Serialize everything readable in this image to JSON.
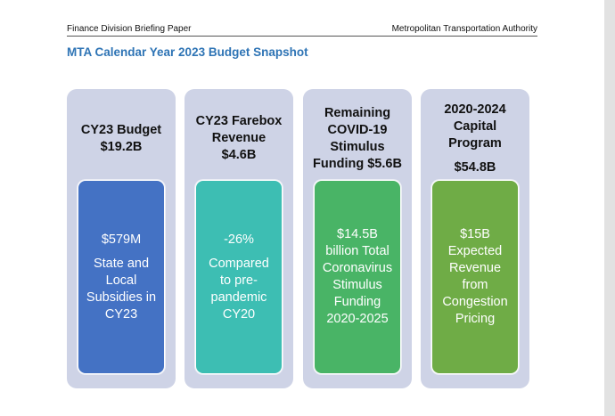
{
  "header": {
    "left": "Finance Division Briefing Paper",
    "right": "Metropolitan Transportation Authority"
  },
  "title": "MTA Calendar Year 2023 Budget Snapshot",
  "colors": {
    "title": "#2e74b5",
    "card_bg": "#ced3e6",
    "card1_inner": "#4472c4",
    "card2_inner": "#3dbeb3",
    "card3_inner": "#49b466",
    "card4_inner": "#6fac46"
  },
  "cards": [
    {
      "head_line1": "CY23 Budget",
      "head_line2": "$19.2B",
      "inner_lead": "$579M",
      "inner_text": "State and\nLocal\nSubsidies in\nCY23"
    },
    {
      "head_line1": "CY23 Farebox\nRevenue",
      "head_line2": "$4.6B",
      "inner_lead": "-26%",
      "inner_text": "Compared\nto pre-\npandemic\nCY20"
    },
    {
      "head_line1": "Remaining\nCOVID-19\nStimulus\nFunding $5.6B",
      "head_line2": "",
      "inner_lead": "$14.5B",
      "inner_text": "billion Total\nCoronavirus\nStimulus\nFunding\n2020-2025"
    },
    {
      "head_line1": "2020-2024\nCapital\nProgram",
      "head_line2": "$54.8B",
      "inner_lead": "$15B",
      "inner_text": "Expected\nRevenue\nfrom\nCongestion\nPricing"
    }
  ]
}
